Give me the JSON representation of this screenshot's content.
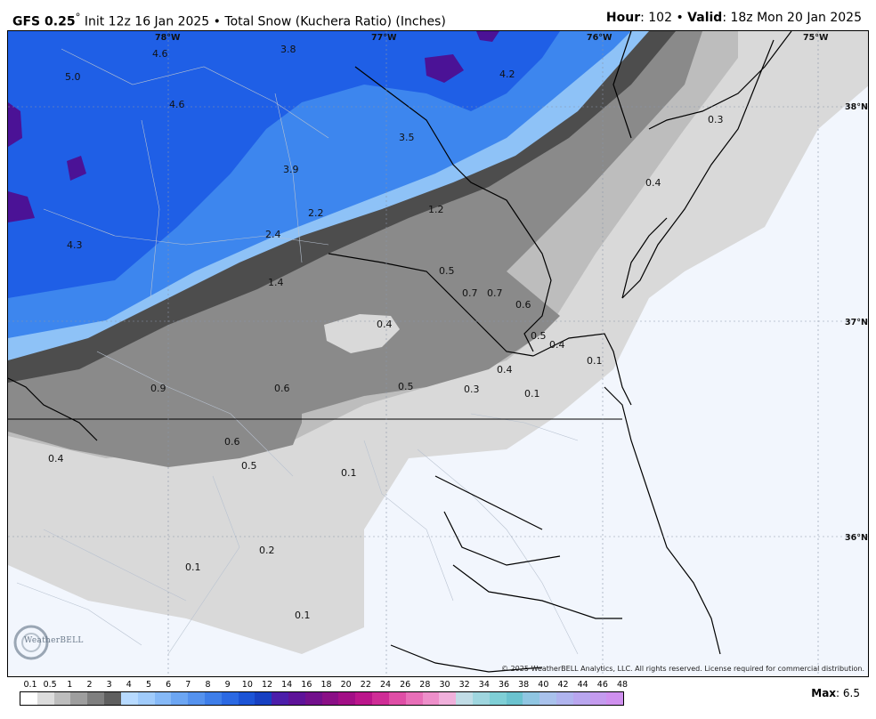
{
  "header": {
    "model": "GFS 0.25",
    "init": "Init 12z 16 Jan 2025",
    "product": "Total Snow (Kuchera Ratio) (Inches)",
    "hour_label": "Hour",
    "hour_value": ": 102",
    "valid_label": "Valid",
    "valid_value": ": 18z Mon 20 Jan 2025"
  },
  "map": {
    "lon_labels": [
      "78°W",
      "77°W",
      "76°W",
      "75°W"
    ],
    "lat_labels": [
      "38°N",
      "37°N",
      "36°N"
    ],
    "snow_values": [
      "4.6",
      "3.8",
      "4.2",
      "5.0",
      "4.6",
      "3.5",
      "3.9",
      "2.2",
      "1.2",
      "2.4",
      "4.3",
      "1.4",
      "0.5",
      "0.7",
      "0.7",
      "0.6",
      "0.4",
      "0.5",
      "0.4",
      "0.1",
      "0.4",
      "0.9",
      "0.6",
      "0.5",
      "0.3",
      "0.1",
      "0.6",
      "0.4",
      "0.5",
      "0.1",
      "0.2",
      "0.1",
      "0.1",
      "0.3",
      "0.4"
    ],
    "logo": "WeatherBELL",
    "copyright": "© 2025 WeatherBELL Analytics, LLC. All rights reserved. License required for commercial distribution."
  },
  "colorbar": {
    "ticks": [
      "0.1",
      "0.5",
      "1",
      "2",
      "3",
      "4",
      "5",
      "6",
      "7",
      "8",
      "9",
      "10",
      "12",
      "14",
      "16",
      "18",
      "20",
      "22",
      "24",
      "26",
      "28",
      "30",
      "32",
      "34",
      "36",
      "38",
      "40",
      "42",
      "44",
      "46",
      "48"
    ],
    "colors": [
      "#ffffff",
      "#dcdcdc",
      "#bdbdbd",
      "#9e9e9e",
      "#7f7f7f",
      "#5f5f5f",
      "#b7daff",
      "#a0cbfb",
      "#86b9f7",
      "#6ca6f3",
      "#5592ee",
      "#3e7ee9",
      "#2b69e3",
      "#1c54d6",
      "#1740c2",
      "#4c1eaa",
      "#5e1399",
      "#72108c",
      "#8a0f86",
      "#a20f86",
      "#bb168b",
      "#cf2d96",
      "#df4ea6",
      "#e86fb8",
      "#ee8fca",
      "#f0b0db",
      "#c1dce6",
      "#9fd6df",
      "#7fcfd6",
      "#6bc3cf",
      "#90c6e2",
      "#a9c2ec",
      "#b0b4ee",
      "#b9a6ee",
      "#c49bee",
      "#cf90ee"
    ],
    "max_label": "Max",
    "max_value": ": 6.5"
  },
  "colors": {
    "snow_heavy": "#1f5fe6",
    "snow_mid": "#3d86ee",
    "snow_light": "#8ec2f7",
    "purple": "#4b1296",
    "gray_dark": "#4d4d4d",
    "gray_mid": "#8a8a8a",
    "gray_light": "#bdbdbd",
    "gray_faint": "#d9d9d9",
    "ocean": "#f2f6fd"
  }
}
